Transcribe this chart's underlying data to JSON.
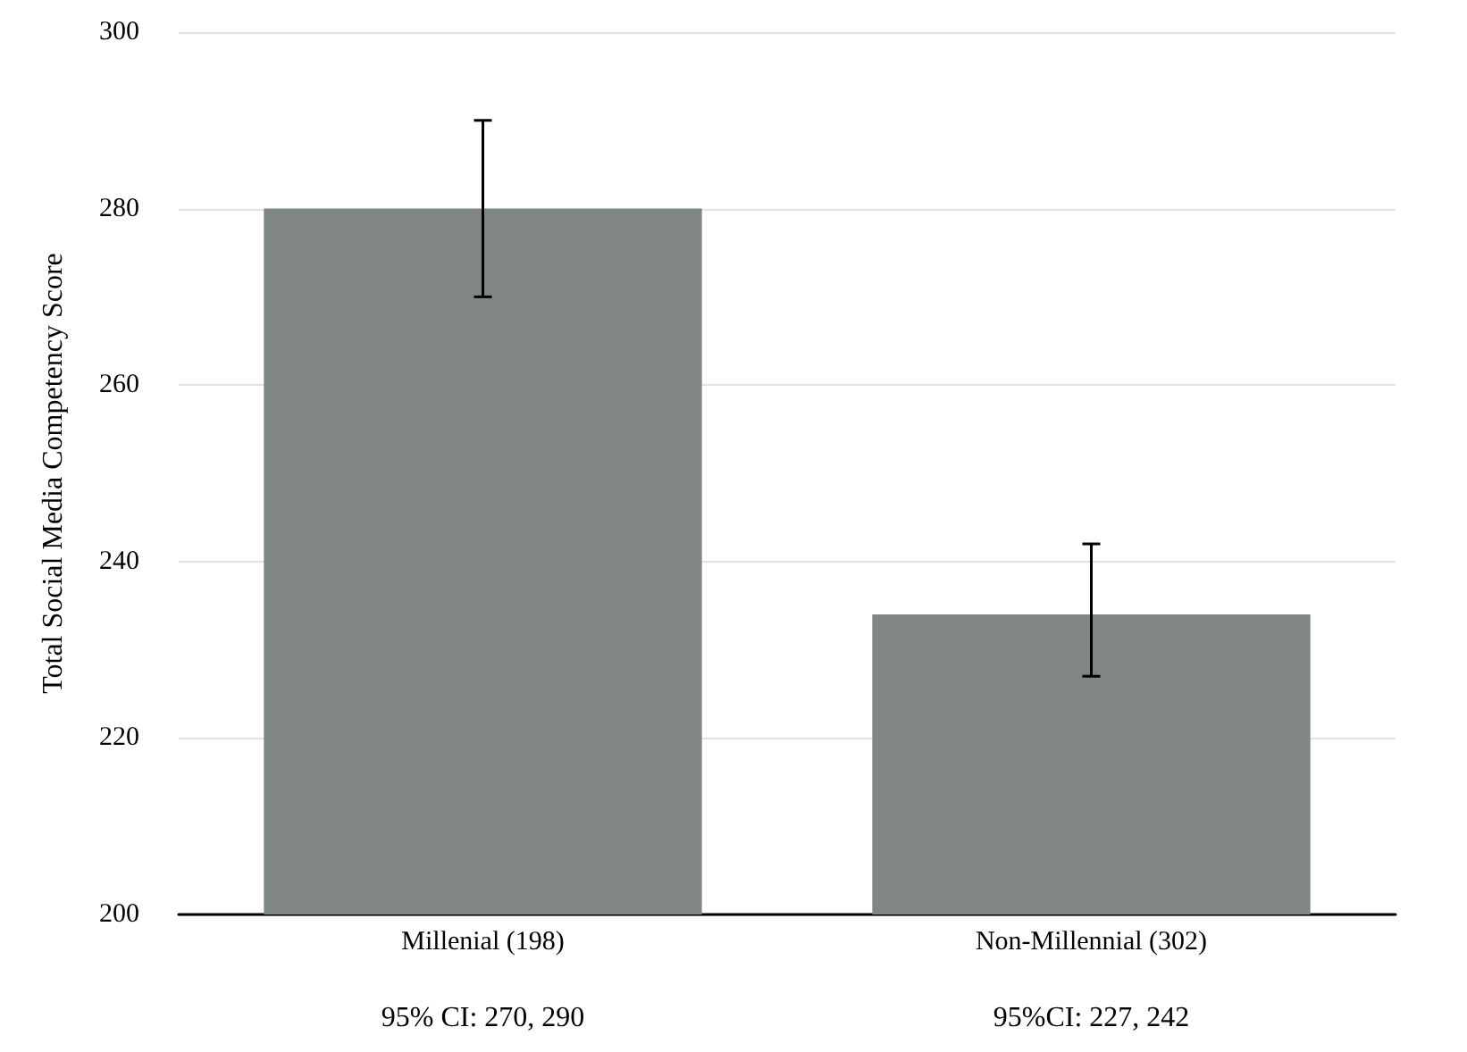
{
  "chart_data": {
    "type": "bar",
    "ylabel": "Total Social Media Competency Score",
    "categories": [
      "Millenial (198)",
      "Non-Millennial (302)"
    ],
    "values": [
      280,
      234
    ],
    "color": "#7f8683",
    "errors": [
      [
        270,
        290
      ],
      [
        227,
        242
      ]
    ],
    "ylim": [
      200,
      300
    ],
    "yticks": [
      200,
      220,
      240,
      260,
      280,
      300
    ],
    "grid": "y",
    "annotations": [
      "95% CI: 270, 290",
      "95%CI: 227, 242"
    ]
  }
}
